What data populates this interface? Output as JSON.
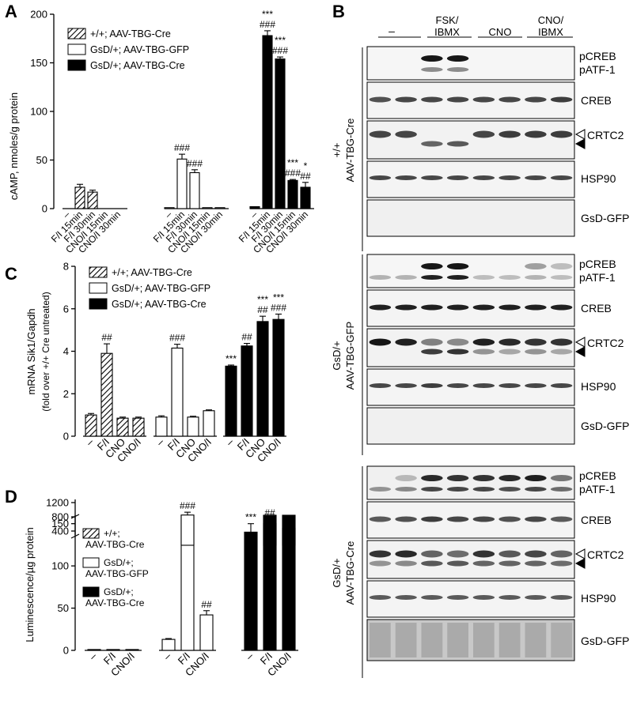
{
  "panel_labels": {
    "a": "A",
    "b": "B",
    "c": "C",
    "d": "D"
  },
  "legend": {
    "wt": "+/+; AAV-TBG-Cre",
    "gfp": "GsD/+; AAV-TBG-GFP",
    "cre": "GsD/+; AAV-TBG-Cre",
    "d_wt": [
      "+/+;",
      "AAV-TBG-Cre"
    ],
    "d_gfp": [
      "GsD/+;",
      "AAV-TBG-GFP"
    ],
    "d_cre": [
      "GsD/+;",
      "AAV-TBG-Cre"
    ]
  },
  "chart_data": [
    {
      "panel": "A",
      "type": "bar",
      "ylabel": "cAMP, nmoles/g protein",
      "ylim": [
        0,
        200
      ],
      "yticks": [
        0,
        50,
        100,
        150,
        200
      ],
      "categories": [
        "–",
        "F/I 15min",
        "F/I 30min",
        "CNO/I 15min",
        "CNO/I 30min"
      ],
      "series": [
        {
          "name": "+/+; AAV-TBG-Cre",
          "values": [
            0,
            22,
            17,
            0,
            0
          ],
          "errors": [
            0,
            3,
            2,
            0,
            0
          ],
          "annotations": [
            "",
            "",
            "",
            "",
            ""
          ]
        },
        {
          "name": "GsD/+; AAV-TBG-GFP",
          "values": [
            1,
            51,
            37,
            1,
            1
          ],
          "errors": [
            0,
            5,
            3,
            0,
            0
          ],
          "annotations": [
            "",
            "###",
            "###",
            "",
            ""
          ]
        },
        {
          "name": "GsD/+; AAV-TBG-Cre",
          "values": [
            2,
            178,
            154,
            29,
            22
          ],
          "errors": [
            0,
            5,
            2,
            1,
            5
          ],
          "annotations": [
            "",
            "***\n###",
            "***\n###",
            "***\n###",
            "*\n##"
          ]
        }
      ]
    },
    {
      "panel": "C",
      "type": "bar",
      "ylabel": "mRNA Sik1/Gapdh",
      "ylabel2": "(fold over +/+ Cre untreated)",
      "ylim": [
        0,
        8
      ],
      "yticks": [
        0,
        2,
        4,
        6,
        8
      ],
      "categories": [
        "–",
        "F/I",
        "CNO",
        "CNO/I"
      ],
      "series": [
        {
          "name": "+/+; AAV-TBG-Cre",
          "values": [
            1.0,
            3.9,
            0.85,
            0.85
          ],
          "errors": [
            0.07,
            0.45,
            0.05,
            0.05
          ],
          "annotations": [
            "",
            "##",
            "",
            ""
          ]
        },
        {
          "name": "GsD/+; AAV-TBG-GFP",
          "values": [
            0.9,
            4.15,
            0.9,
            1.2
          ],
          "errors": [
            0.06,
            0.18,
            0.04,
            0.04
          ],
          "annotations": [
            "",
            "###",
            "",
            ""
          ]
        },
        {
          "name": "GsD/+; AAV-TBG-Cre",
          "values": [
            3.3,
            4.25,
            5.4,
            5.5
          ],
          "errors": [
            0.05,
            0.12,
            0.25,
            0.25
          ],
          "annotations": [
            "***",
            "##",
            "***\n##",
            "***\n###"
          ]
        }
      ]
    },
    {
      "panel": "D",
      "type": "bar",
      "ylabel": "Luminescence/µg protein",
      "ylim_lower": [
        0,
        160
      ],
      "ylim_upper": [
        200,
        1200
      ],
      "yticks_lower": [
        0,
        50,
        100,
        150
      ],
      "yticks_upper": [
        400,
        800,
        1200
      ],
      "categories": [
        "–",
        "F/I",
        "CNO/I"
      ],
      "series": [
        {
          "name": "+/+; AAV-TBG-Cre",
          "values": [
            1,
            1,
            1
          ],
          "errors": [
            0,
            0,
            0
          ],
          "annotations": [
            "",
            "",
            ""
          ]
        },
        {
          "name": "GsD/+; AAV-TBG-GFP",
          "values": [
            13,
            850,
            42
          ],
          "errors": [
            1,
            80,
            5
          ],
          "annotations": [
            "",
            "###",
            "##"
          ]
        },
        {
          "name": "GsD/+; AAV-TBG-Cre",
          "values": [
            140,
            610,
            480
          ],
          "errors": [
            10,
            120,
            70
          ],
          "annotations": [
            "***",
            "##",
            "##"
          ]
        }
      ]
    }
  ],
  "blot": {
    "header_groups": [
      "–",
      "FSK/",
      "IBMX",
      "CNO",
      "CNO/",
      "IBMX"
    ],
    "genotypes": [
      {
        "line1": "+/+",
        "line2": "AAV-TBG-Cre"
      },
      {
        "line1": "GsD/+",
        "line2": "AAV-TBG-GFP"
      },
      {
        "line1": "GsD/+",
        "line2": "AAV-TBG-Cre"
      }
    ],
    "strip_labels": [
      "pCREB",
      "pATF-1",
      "CREB",
      "CRTC2",
      "HSP90",
      "GsD-GFP"
    ]
  }
}
